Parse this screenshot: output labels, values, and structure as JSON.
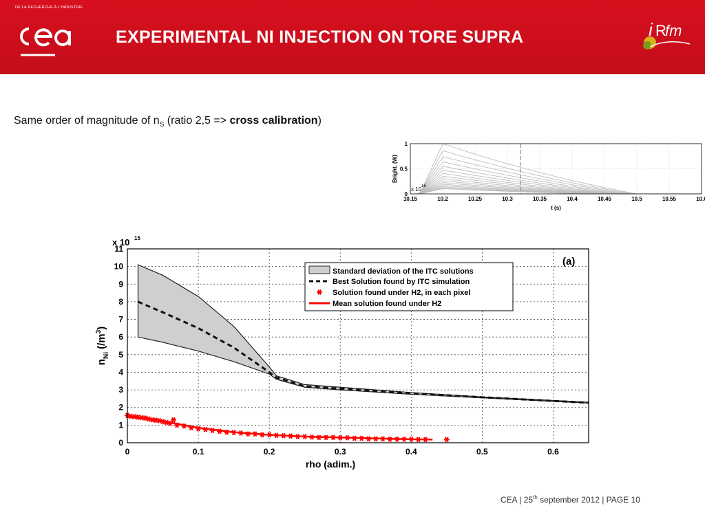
{
  "header": {
    "brand_tagline": "DE LA RECHERCHE À L'INDUSTRIE",
    "logo_left_text": "cea",
    "title": "EXPERIMENTAL NI INJECTION ON TORE SUPRA",
    "logo_right_text": "irfm"
  },
  "body": {
    "line_prefix": "Same order of magnitude of n",
    "line_sub": "S",
    "line_mid": " (ratio 2,5 => ",
    "line_bold": "cross calibration",
    "line_suffix": ")"
  },
  "footer": {
    "prefix": "CEA | 25",
    "sup": "th",
    "suffix": " september 2012 |  PAGE 10"
  },
  "colors": {
    "banner": "#c80f1c",
    "band_fill": "#cfcfcf",
    "mean_line": "#ff0000",
    "markers": "#ff0000",
    "inset_lines": "#bdbdbd"
  },
  "chart_data": [
    {
      "type": "line",
      "xlabel": "t (s)",
      "ylabel": "Bright. (W)",
      "y_multiplier": "x 10",
      "y_multiplier_exp": "16",
      "xlim": [
        10.15,
        10.6
      ],
      "ylim": [
        0,
        1
      ],
      "x_ticks": [
        "10.15",
        "10.2",
        "10.25",
        "10.3",
        "10.35",
        "10.4",
        "10.45",
        "10.5",
        "10.55",
        "10.6"
      ],
      "y_ticks": [
        "0",
        "0.5",
        "1"
      ],
      "grid": true,
      "vertical_marker_x": 10.32,
      "series_count": 16,
      "peak_x": 10.2,
      "decay_end_x": 10.5
    },
    {
      "type": "line",
      "xlabel": "rho (adim.)",
      "ylabel": "n",
      "ylabel_sub": "Ni",
      "ylabel_unit": "(/m",
      "ylabel_unit_exp": "3",
      "ylabel_close": ")",
      "y_multiplier": "x 10",
      "y_multiplier_exp": "15",
      "panel_label": "(a)",
      "xlim": [
        0,
        0.65
      ],
      "ylim": [
        0,
        11
      ],
      "x_ticks": [
        "0",
        "0.1",
        "0.2",
        "0.3",
        "0.4",
        "0.5",
        "0.6"
      ],
      "y_ticks": [
        "0",
        "1",
        "2",
        "3",
        "4",
        "5",
        "6",
        "7",
        "8",
        "9",
        "10",
        "11"
      ],
      "grid": true,
      "legend": [
        "Standard deviation of the ITC solutions",
        "Best Solution found by ITC simulation",
        "Solution found under H2, in each pixel",
        "Mean solution found under H2"
      ],
      "legend_position": "top-right",
      "std_band_upper": {
        "x": [
          0.015,
          0.05,
          0.1,
          0.15,
          0.2,
          0.21,
          0.25,
          0.3,
          0.4,
          0.5,
          0.65
        ],
        "y": [
          10.1,
          9.5,
          8.3,
          6.6,
          4.3,
          3.8,
          3.3,
          3.15,
          2.85,
          2.6,
          2.3
        ]
      },
      "std_band_lower": {
        "x": [
          0.015,
          0.05,
          0.1,
          0.15,
          0.2,
          0.21,
          0.25,
          0.3,
          0.4,
          0.5,
          0.65
        ],
        "y": [
          6.0,
          5.7,
          5.2,
          4.6,
          3.9,
          3.6,
          3.15,
          3.0,
          2.75,
          2.55,
          2.25
        ]
      },
      "best_solution": {
        "x": [
          0.015,
          0.05,
          0.1,
          0.15,
          0.2,
          0.21,
          0.25,
          0.3,
          0.4,
          0.5,
          0.65
        ],
        "y": [
          8.0,
          7.4,
          6.5,
          5.4,
          4.0,
          3.7,
          3.2,
          3.07,
          2.8,
          2.58,
          2.27
        ]
      },
      "mean_h2": {
        "x": [
          0,
          0.03,
          0.06,
          0.1,
          0.15,
          0.2,
          0.25,
          0.3,
          0.35,
          0.4,
          0.43
        ],
        "y": [
          1.5,
          1.35,
          1.15,
          0.85,
          0.6,
          0.45,
          0.35,
          0.3,
          0.25,
          0.2,
          0.18
        ]
      },
      "h2_points": {
        "x": [
          0.0,
          0.005,
          0.01,
          0.015,
          0.02,
          0.025,
          0.03,
          0.035,
          0.04,
          0.045,
          0.05,
          0.055,
          0.06,
          0.065,
          0.07,
          0.08,
          0.09,
          0.1,
          0.11,
          0.12,
          0.13,
          0.14,
          0.15,
          0.16,
          0.17,
          0.18,
          0.19,
          0.2,
          0.21,
          0.22,
          0.23,
          0.24,
          0.25,
          0.26,
          0.27,
          0.28,
          0.29,
          0.3,
          0.31,
          0.32,
          0.33,
          0.34,
          0.35,
          0.36,
          0.37,
          0.38,
          0.39,
          0.4,
          0.41,
          0.42,
          0.45
        ],
        "y": [
          1.55,
          1.5,
          1.48,
          1.45,
          1.42,
          1.4,
          1.35,
          1.3,
          1.28,
          1.25,
          1.2,
          1.15,
          1.1,
          1.3,
          1.0,
          0.95,
          0.85,
          0.8,
          0.75,
          0.7,
          0.65,
          0.6,
          0.58,
          0.55,
          0.5,
          0.5,
          0.45,
          0.45,
          0.42,
          0.4,
          0.38,
          0.35,
          0.35,
          0.32,
          0.3,
          0.3,
          0.3,
          0.28,
          0.28,
          0.25,
          0.25,
          0.22,
          0.22,
          0.22,
          0.2,
          0.2,
          0.2,
          0.2,
          0.18,
          0.18,
          0.18
        ]
      }
    }
  ]
}
